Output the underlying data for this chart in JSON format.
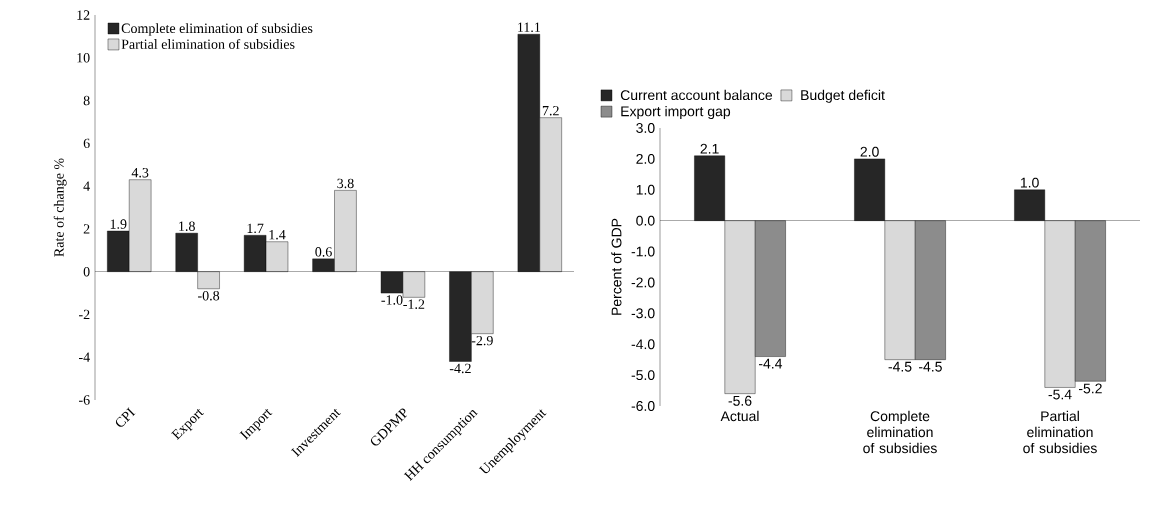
{
  "chart_data": [
    {
      "type": "bar",
      "ylabel": "Rate of change %",
      "categories": [
        "CPI",
        "Export",
        "Import",
        "Investment",
        "GDPMP",
        "HH consumption",
        "Unemployment"
      ],
      "series": [
        {
          "name": "Complete elimination of subsidies",
          "color": "#262626",
          "values": [
            1.9,
            1.8,
            1.7,
            0.6,
            -1.0,
            -4.2,
            11.1
          ],
          "value_labels": [
            "1.9",
            "1.8",
            "1.7",
            "0.6",
            "-1.0",
            "-4.2",
            "11.1"
          ]
        },
        {
          "name": "Partial elimination of subsidies",
          "color": "#d9d9d9",
          "values": [
            4.3,
            -0.8,
            1.4,
            3.8,
            -1.2,
            -2.9,
            7.2
          ],
          "value_labels": [
            "4.3",
            "-0.8",
            "1.4",
            "3.8",
            "-1.2",
            "-2.9",
            "7.2"
          ]
        }
      ],
      "ylim": [
        -6,
        12
      ],
      "yticks": [
        -6,
        -4,
        -2,
        0,
        2,
        4,
        6,
        8,
        10,
        12
      ],
      "legend": "top left"
    },
    {
      "type": "bar",
      "ylabel": "Percent of GDP",
      "categories": [
        "Actual",
        "Complete elimination of subsidies",
        "Partial elimination of subsidies"
      ],
      "series": [
        {
          "name": "Current account balance",
          "color": "#262626",
          "values": [
            2.1,
            2.0,
            1.0
          ],
          "value_labels": [
            "2.1",
            "2.0",
            "1.0"
          ]
        },
        {
          "name": "Budget deficit",
          "color": "#d9d9d9",
          "values": [
            -5.6,
            -4.5,
            -5.4
          ],
          "value_labels": [
            "-5.6",
            "-4.5",
            "-5.4"
          ]
        },
        {
          "name": "Export import gap",
          "color": "#8c8c8c",
          "values": [
            -4.4,
            -4.5,
            -5.2
          ],
          "value_labels": [
            "-4.4",
            "-4.5",
            "-5.2"
          ]
        }
      ],
      "ylim": [
        -6,
        3
      ],
      "yticks": [
        {
          "value": -6,
          "label": "-6.0"
        },
        {
          "value": -5,
          "label": "-5.0"
        },
        {
          "value": -4,
          "label": "-4.0"
        },
        {
          "value": -3,
          "label": "-3.0"
        },
        {
          "value": -2,
          "label": "-2.0"
        },
        {
          "value": -1,
          "label": "-1.0"
        },
        {
          "value": 0,
          "label": "0.0"
        },
        {
          "value": 1,
          "label": "1.0"
        },
        {
          "value": 2,
          "label": "2.0"
        },
        {
          "value": 3,
          "label": "3.0"
        }
      ],
      "legend": "top"
    }
  ]
}
